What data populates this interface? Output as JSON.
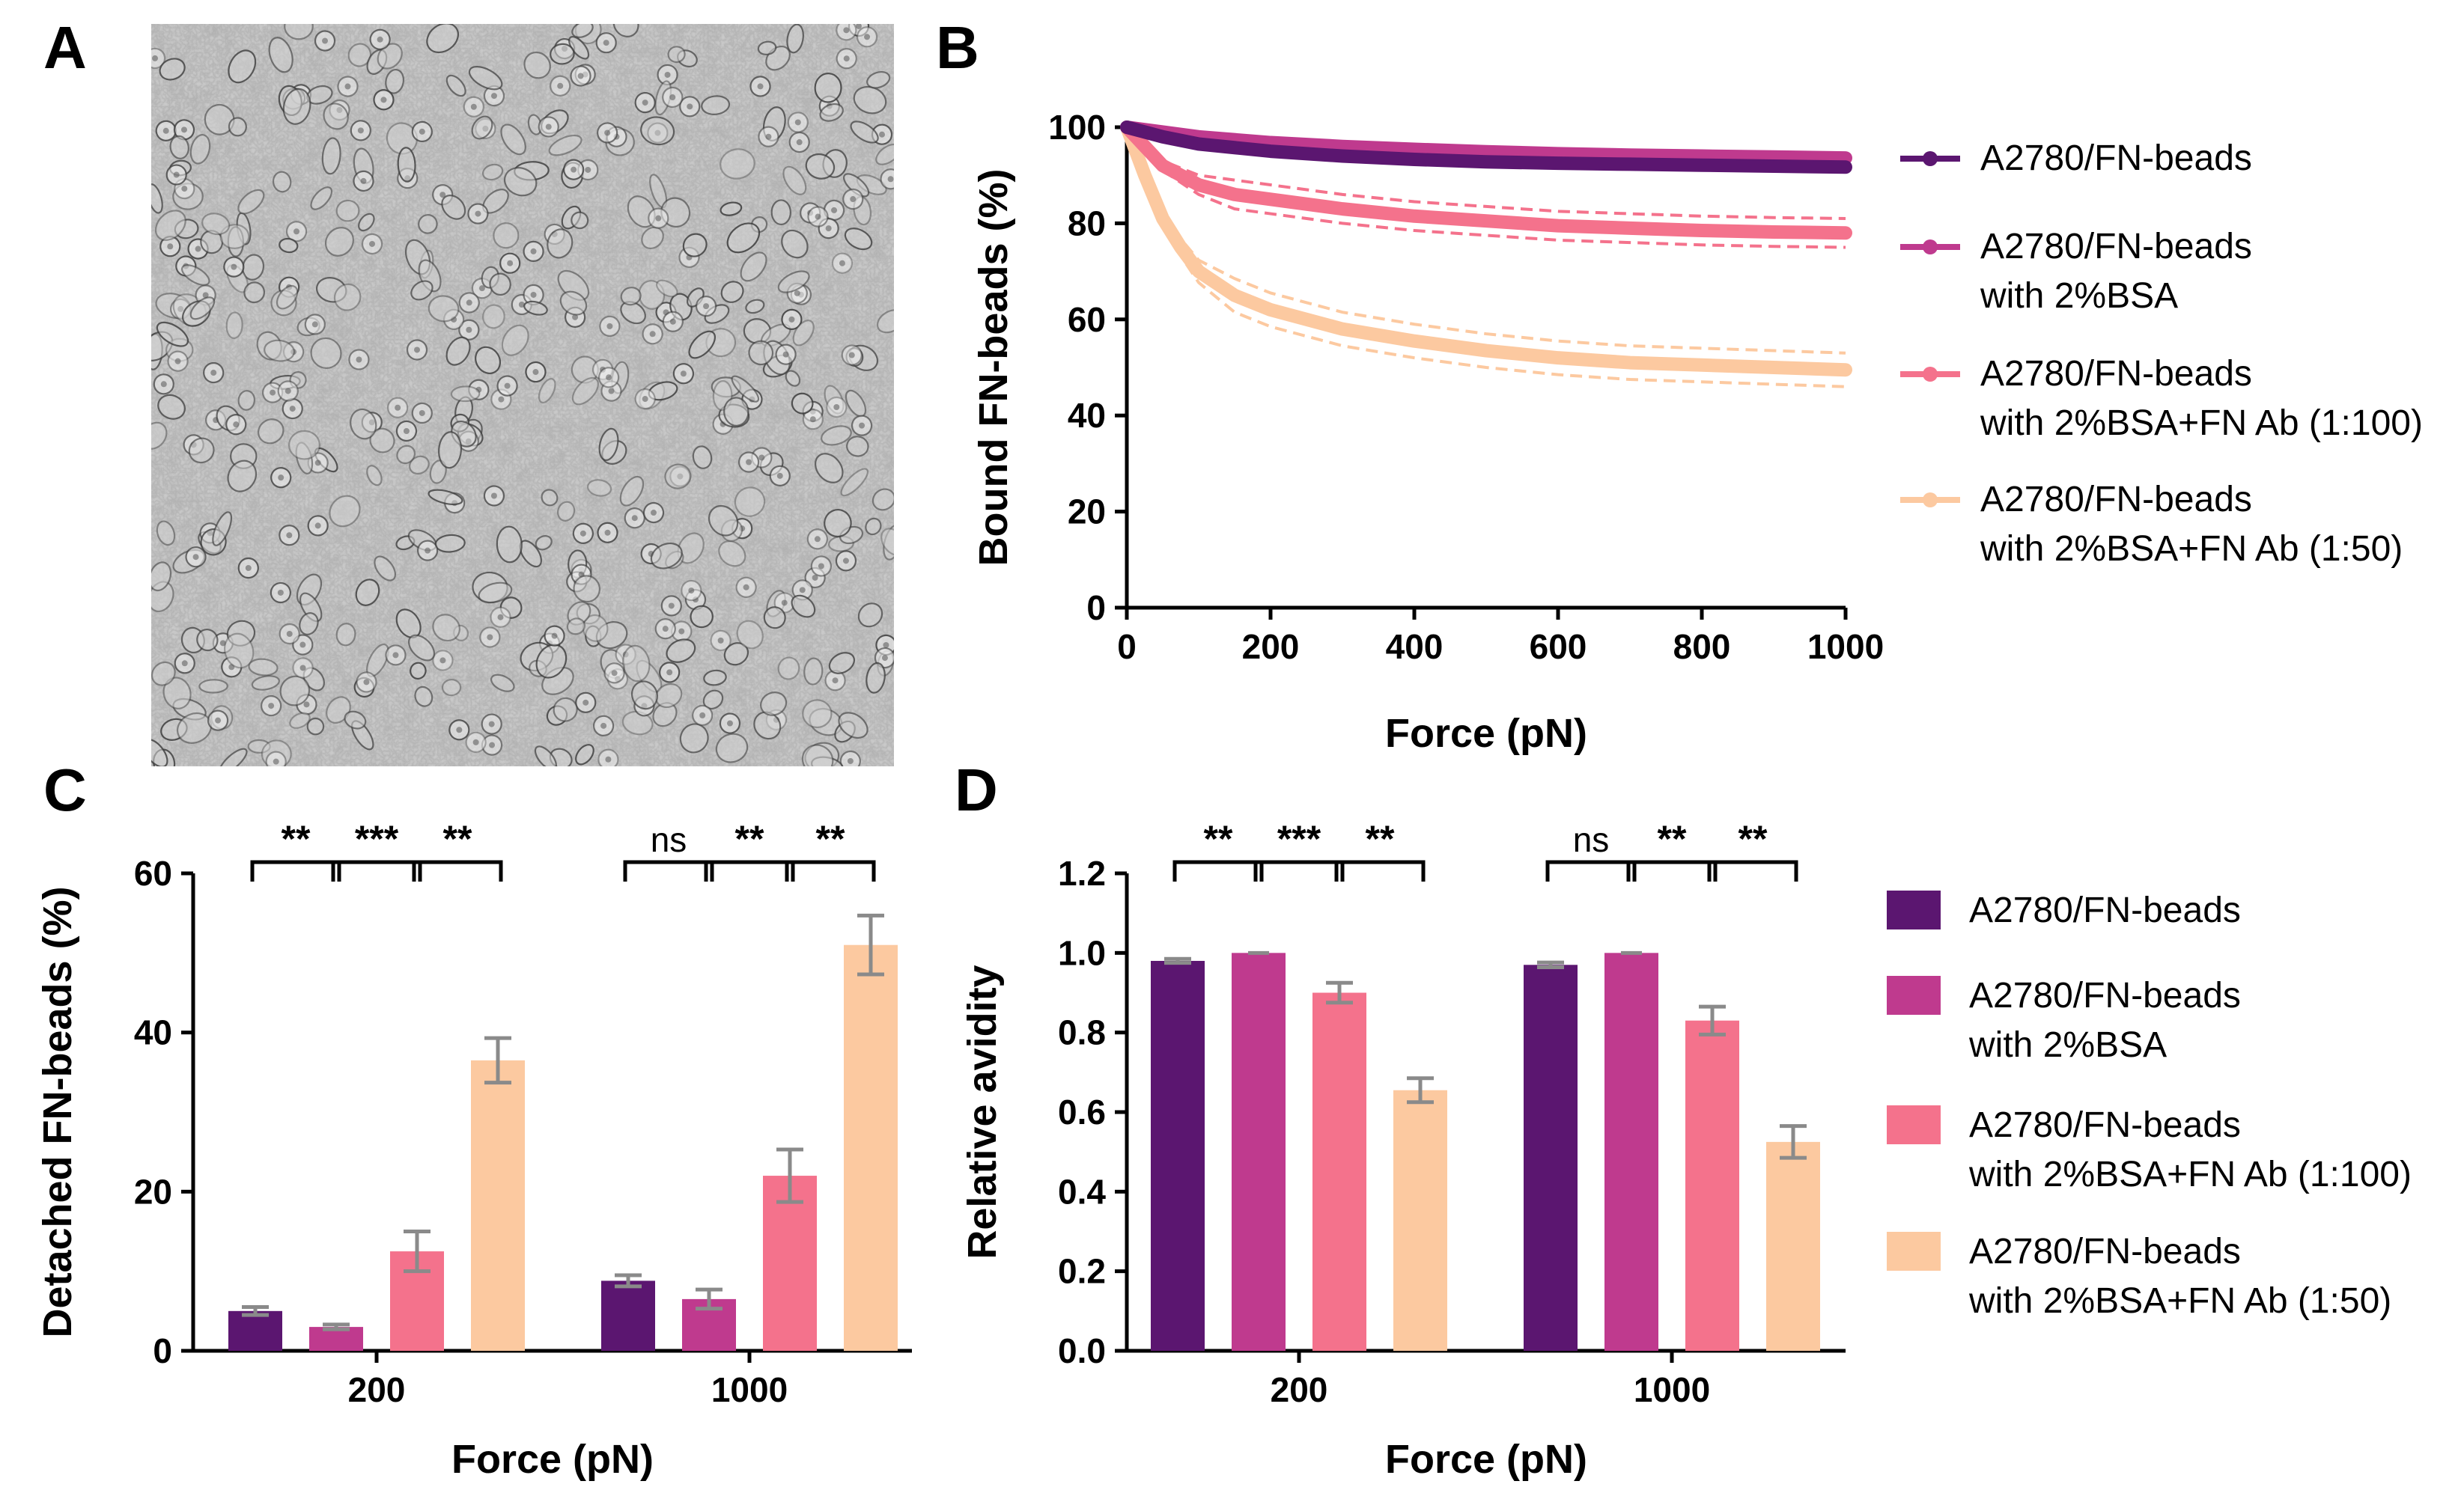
{
  "panels": {
    "A": {
      "letter": "A",
      "image": "brightfield micrograph of A2780 cells"
    },
    "B": {
      "letter": "B"
    },
    "C": {
      "letter": "C"
    },
    "D": {
      "letter": "D"
    }
  },
  "colors": {
    "A2780_FN_beads": "#5b1670",
    "with_2_BSA": "#bf3a8e",
    "with_2_BSA_FN_Ab_1_100": "#f4728c",
    "with_2_BSA_FN_Ab_1_50": "#fcc9a0",
    "errorbar": "#8a8a8a"
  },
  "chart_data": [
    {
      "panel": "B",
      "type": "line",
      "xlabel": "Force (pN)",
      "ylabel": "Bound FN-beads (%)",
      "xlim": [
        0,
        1000
      ],
      "ylim": [
        0,
        100
      ],
      "xticks": [
        "0",
        "200",
        "400",
        "600",
        "800",
        "1000"
      ],
      "yticks": [
        "0",
        "20",
        "40",
        "60",
        "80",
        "100"
      ],
      "legend_position": "right",
      "series": [
        {
          "name": "A2780/FN-beads",
          "color_key": "A2780_FN_beads",
          "x": [
            0,
            50,
            100,
            200,
            300,
            400,
            500,
            600,
            700,
            800,
            900,
            1000
          ],
          "y": [
            100,
            98,
            96.5,
            95,
            94,
            93.3,
            92.8,
            92.5,
            92.3,
            92.1,
            91.9,
            91.7
          ]
        },
        {
          "name": "A2780/FN-beads\nwith 2%BSA",
          "color_key": "with_2_BSA",
          "x": [
            0,
            50,
            100,
            200,
            300,
            400,
            500,
            600,
            700,
            800,
            900,
            1000
          ],
          "y": [
            100,
            99,
            98,
            96.8,
            96,
            95.4,
            94.9,
            94.5,
            94.2,
            94,
            93.8,
            93.6
          ]
        },
        {
          "name": "A2780/FN-beads\nwith 2%BSA+FN Ab (1:100)",
          "color_key": "with_2_BSA_FN_Ab_1_100",
          "x": [
            0,
            25,
            50,
            100,
            150,
            200,
            300,
            400,
            500,
            600,
            700,
            800,
            900,
            1000
          ],
          "y": [
            100,
            96,
            92,
            88,
            86,
            85,
            83,
            81.5,
            80.5,
            79.5,
            79,
            78.5,
            78.2,
            78
          ],
          "band": 3
        },
        {
          "name": "A2780/FN-beads\nwith 2%BSA+FN Ab (1:50)",
          "color_key": "with_2_BSA_FN_Ab_1_50",
          "x": [
            0,
            25,
            50,
            75,
            100,
            150,
            200,
            300,
            400,
            500,
            600,
            700,
            800,
            900,
            1000
          ],
          "y": [
            100,
            90,
            81,
            75,
            70,
            65,
            62,
            58,
            55.5,
            53.5,
            52,
            51,
            50.5,
            50,
            49.5
          ],
          "band": 3.5
        }
      ]
    },
    {
      "panel": "C",
      "type": "bar",
      "xlabel": "Force (pN)",
      "ylabel": "Detached FN-beads (%)",
      "ylim": [
        0,
        60
      ],
      "yticks": [
        "0",
        "20",
        "40",
        "60"
      ],
      "categories": [
        "200",
        "1000"
      ],
      "series": [
        {
          "name": "A2780/FN-beads",
          "color_key": "A2780_FN_beads",
          "values": [
            5.0,
            8.8
          ],
          "errors": [
            0.5,
            0.7
          ]
        },
        {
          "name": "A2780/FN-beads with 2%BSA",
          "color_key": "with_2_BSA",
          "values": [
            3.0,
            6.5
          ],
          "errors": [
            0.3,
            1.2
          ]
        },
        {
          "name": "A2780/FN-beads with 2%BSA+FN Ab (1:100)",
          "color_key": "with_2_BSA_FN_Ab_1_100",
          "values": [
            12.5,
            22.0
          ],
          "errors": [
            2.5,
            3.3
          ]
        },
        {
          "name": "A2780/FN-beads with 2%BSA+FN Ab (1:50)",
          "color_key": "with_2_BSA_FN_Ab_1_50",
          "values": [
            36.5,
            51.0
          ],
          "errors": [
            2.8,
            3.7
          ]
        }
      ],
      "significance": [
        [
          "**",
          "***",
          "**"
        ],
        [
          "ns",
          "**",
          "**"
        ]
      ]
    },
    {
      "panel": "D",
      "type": "bar",
      "xlabel": "Force (pN)",
      "ylabel": "Relative avidity",
      "ylim": [
        0,
        1.2
      ],
      "yticks": [
        "0.0",
        "0.2",
        "0.4",
        "0.6",
        "0.8",
        "1.0",
        "1.2"
      ],
      "categories": [
        "200",
        "1000"
      ],
      "legend_position": "right",
      "series": [
        {
          "name": "A2780/FN-beads",
          "color_key": "A2780_FN_beads",
          "values": [
            0.98,
            0.97
          ],
          "errors": [
            0.005,
            0.006
          ]
        },
        {
          "name": "A2780/FN-beads\nwith 2%BSA",
          "color_key": "with_2_BSA",
          "values": [
            1.0,
            1.0
          ],
          "errors": [
            0,
            0
          ]
        },
        {
          "name": "A2780/FN-beads\nwith 2%BSA+FN Ab (1:100)",
          "color_key": "with_2_BSA_FN_Ab_1_100",
          "values": [
            0.9,
            0.83
          ],
          "errors": [
            0.025,
            0.035
          ]
        },
        {
          "name": "A2780/FN-beads\nwith 2%BSA+FN Ab (1:50)",
          "color_key": "with_2_BSA_FN_Ab_1_50",
          "values": [
            0.655,
            0.525
          ],
          "errors": [
            0.03,
            0.04
          ]
        }
      ],
      "significance": [
        [
          "**",
          "***",
          "**"
        ],
        [
          "ns",
          "**",
          "**"
        ]
      ]
    }
  ]
}
